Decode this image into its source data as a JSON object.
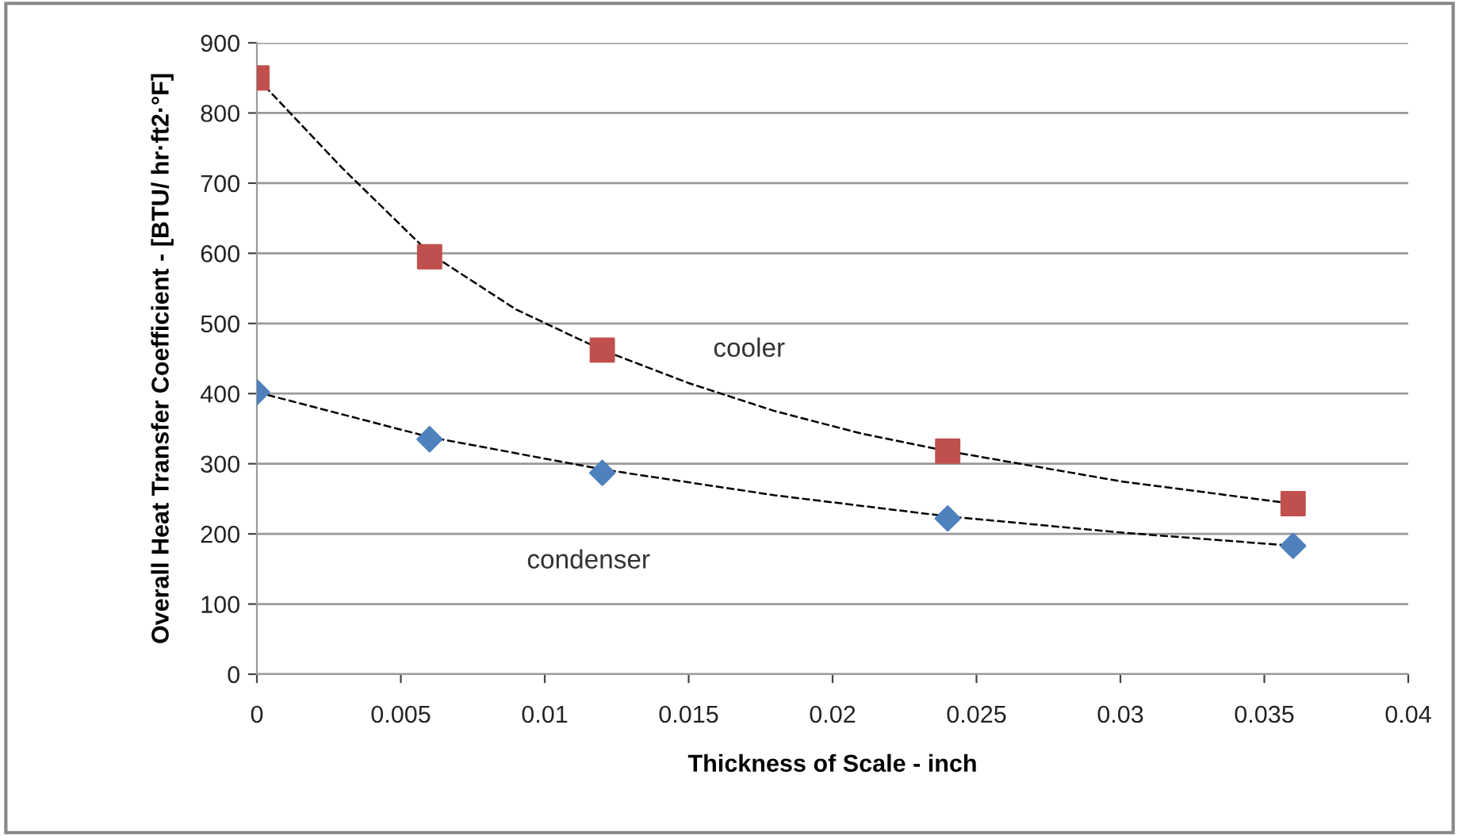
{
  "chart_data": {
    "type": "scatter",
    "xlabel": "Thickness of Scale - inch",
    "ylabel": "Overall Heat Transfer Coefficient - [BTU/ hr·ft2·°F]",
    "series": [
      {
        "color": "#c0504d",
        "marker": "square",
        "x": [
          0,
          0.006,
          0.012,
          0.024,
          0.036
        ],
        "values": [
          850,
          595,
          462,
          318,
          243
        ]
      },
      {
        "color": "#4f81bd",
        "marker": "diamond",
        "x": [
          0,
          0.006,
          0.012,
          0.024,
          0.036
        ],
        "values": [
          402,
          335,
          287,
          222,
          183
        ]
      },
      {
        "type": "line",
        "name": "cooler",
        "color": "#000000",
        "line_style": "dashed",
        "x": [
          0,
          0.003,
          0.006,
          0.009,
          0.012,
          0.015,
          0.018,
          0.021,
          0.024,
          0.03,
          0.036
        ],
        "values": [
          850,
          720,
          600,
          520,
          462,
          415,
          375,
          343,
          318,
          275,
          243
        ]
      },
      {
        "type": "line",
        "name": "condenser",
        "color": "#000000",
        "line_style": "dashed",
        "x": [
          0,
          0.006,
          0.012,
          0.018,
          0.024,
          0.03,
          0.036
        ],
        "values": [
          402,
          338,
          292,
          255,
          225,
          202,
          183
        ]
      }
    ],
    "xlim": [
      0,
      0.04
    ],
    "xticks": [
      0,
      0.005,
      0.01,
      0.015,
      0.02,
      0.025,
      0.03,
      0.035,
      0.04
    ],
    "ylim": [
      0,
      900
    ],
    "yticks": [
      0,
      100,
      200,
      300,
      400,
      500,
      600,
      700,
      800,
      900
    ],
    "grid": "y",
    "legend": false
  }
}
